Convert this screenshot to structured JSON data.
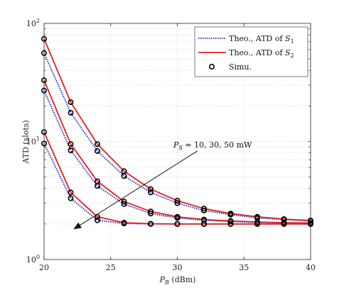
{
  "chart_data": {
    "type": "line",
    "xlabel": "P_B (dBm)",
    "ylabel": "ATD (slots)",
    "xlim": [
      20,
      40
    ],
    "ylim": [
      1,
      100
    ],
    "yscale": "log",
    "grid": true,
    "legend_position": "top-right",
    "x_ticks": [
      "20",
      "25",
      "30",
      "35",
      "40"
    ],
    "y_ticks": [
      {
        "base": "10",
        "exp": "0",
        "value": 1
      },
      {
        "base": "10",
        "exp": "1",
        "value": 10
      },
      {
        "base": "10",
        "exp": "2",
        "value": 100
      }
    ],
    "x": [
      20,
      22,
      24,
      26,
      28,
      30,
      32,
      34,
      36,
      38,
      40
    ],
    "series": [
      {
        "name": "Theo., ATD of S1",
        "legend_main": "Theo., ATD of ",
        "legend_sym": "S",
        "legend_sub": "1",
        "color": "#1f1fb4",
        "style": "dotted",
        "marker": false,
        "group": 1,
        "values": [
          56,
          17.5,
          8.3,
          5.1,
          3.7,
          3.0,
          2.6,
          2.4,
          2.25,
          2.18,
          2.12
        ]
      },
      {
        "name": "Theo., ATD of S2",
        "legend_main": "Theo., ATD of ",
        "legend_sym": "S",
        "legend_sub": "2",
        "color": "#e02020",
        "style": "solid",
        "marker": false,
        "group": 1,
        "values": [
          74,
          21.5,
          9.5,
          5.6,
          3.95,
          3.15,
          2.7,
          2.45,
          2.3,
          2.2,
          2.14
        ]
      },
      {
        "name": "Theo., ATD of S1",
        "color": "#1f1fb4",
        "style": "dotted",
        "marker": false,
        "group": 2,
        "values": [
          27,
          8.4,
          4.2,
          2.95,
          2.45,
          2.25,
          2.15,
          2.1,
          2.06,
          2.04,
          2.03
        ]
      },
      {
        "name": "Theo., ATD of S2",
        "color": "#e02020",
        "style": "solid",
        "marker": false,
        "group": 2,
        "values": [
          33,
          9.5,
          4.6,
          3.1,
          2.55,
          2.3,
          2.18,
          2.12,
          2.08,
          2.05,
          2.04
        ]
      },
      {
        "name": "Theo., ATD of S1",
        "color": "#1f1fb4",
        "style": "dotted",
        "marker": false,
        "group": 3,
        "values": [
          9.6,
          3.3,
          2.15,
          2.02,
          2.0,
          2.0,
          2.0,
          2.0,
          2.0,
          2.0,
          2.0
        ]
      },
      {
        "name": "Theo., ATD of S2",
        "color": "#e02020",
        "style": "solid",
        "marker": false,
        "group": 3,
        "values": [
          12,
          3.7,
          2.3,
          2.05,
          2.01,
          2.0,
          2.0,
          2.0,
          2.0,
          2.0,
          2.0
        ]
      },
      {
        "name": "Simu.",
        "color": "#000000",
        "style": "none",
        "marker": true,
        "values_sets": "all"
      }
    ],
    "legend": [
      {
        "main": "Theo., ATD of ",
        "sym": "S",
        "sub": "1",
        "color": "#1f1fb4",
        "style": "dotted"
      },
      {
        "main": "Theo., ATD of ",
        "sym": "S",
        "sub": "2",
        "color": "#e02020",
        "style": "solid"
      },
      {
        "main": "Simu.",
        "sym": "",
        "sub": "",
        "color": "#000000",
        "style": "marker"
      }
    ],
    "annotation": {
      "text_prefix": "P",
      "text_sub": "S",
      "text_rest": " = 10, 30, 50 mW",
      "arrow_from": [
        31.5,
        8.3
      ],
      "arrow_to": [
        22.2,
        1.8
      ]
    },
    "xlabel_main": "P",
    "xlabel_sub": "B",
    "xlabel_rest": " (dBm)"
  }
}
